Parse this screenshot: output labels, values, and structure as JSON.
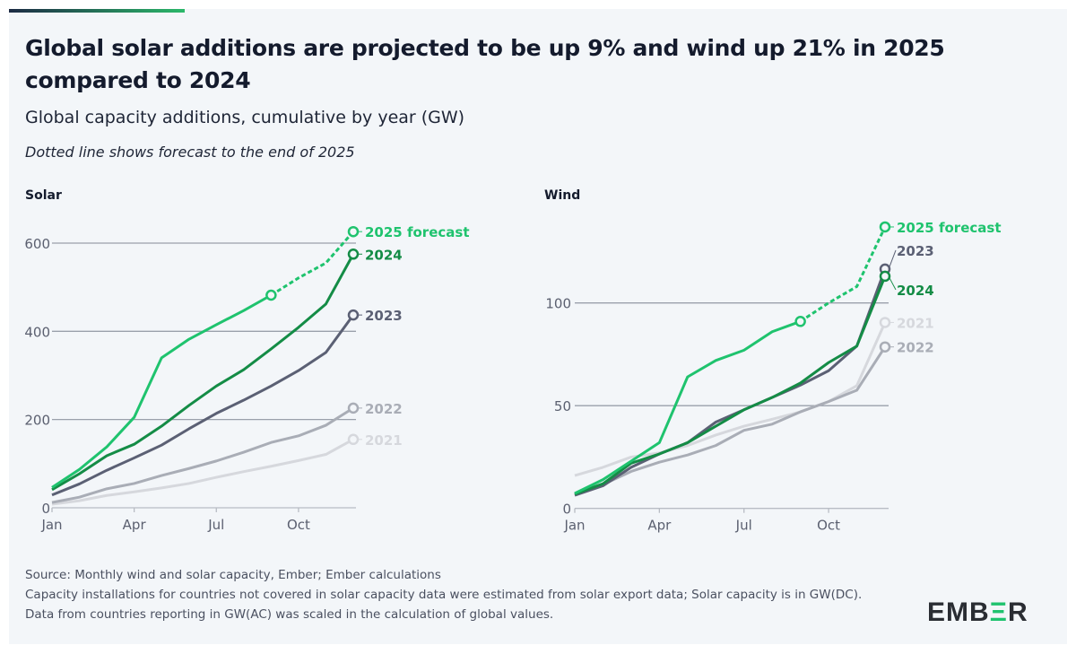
{
  "title": "Global solar additions are projected to be up 9% and wind up 21% in 2025 compared to 2024",
  "subtitle": "Global capacity additions, cumulative by year (GW)",
  "note": "Dotted line shows forecast to the end of 2025",
  "footer": {
    "source": "Source: Monthly wind and solar capacity, Ember; Ember calculations",
    "details": "Capacity installations for countries not covered in solar capacity data were estimated from solar export data; Solar capacity is in GW(DC). Data from countries reporting in GW(AC) was scaled in the calculation of global values."
  },
  "logo": {
    "text": "EMBER",
    "accent": "#1fc36e"
  },
  "colors": {
    "2025 forecast": "#1fc36e",
    "2024": "#148c46",
    "2023": "#5b6074",
    "2022": "#a9adb6",
    "2021": "#d6d8dd",
    "grid": "#9aa0ab"
  },
  "chart_data": [
    {
      "type": "line",
      "title": "Solar",
      "x": [
        "Jan",
        "Feb",
        "Mar",
        "Apr",
        "May",
        "Jun",
        "Jul",
        "Aug",
        "Sep",
        "Oct",
        "Nov",
        "Dec"
      ],
      "xticks": [
        "Jan",
        "Apr",
        "Jul",
        "Oct"
      ],
      "yticks": [
        0,
        200,
        400,
        600
      ],
      "ylim": [
        0,
        640
      ],
      "grid": true,
      "series": [
        {
          "name": "2021",
          "values": [
            8,
            16,
            28,
            36,
            45,
            55,
            69,
            82,
            94,
            107,
            121,
            155
          ]
        },
        {
          "name": "2022",
          "values": [
            12,
            24,
            43,
            55,
            73,
            89,
            106,
            126,
            148,
            163,
            187,
            226
          ]
        },
        {
          "name": "2023",
          "values": [
            29,
            54,
            85,
            113,
            142,
            179,
            214,
            244,
            276,
            311,
            352,
            437
          ]
        },
        {
          "name": "2024",
          "values": [
            41,
            77,
            118,
            144,
            185,
            232,
            276,
            313,
            360,
            409,
            462,
            575
          ]
        },
        {
          "name": "2025 forecast",
          "values": [
            46,
            87,
            138,
            205,
            340,
            382,
            415,
            447,
            482,
            521,
            555,
            626
          ],
          "forecast_from": "Sep"
        }
      ]
    },
    {
      "type": "line",
      "title": "Wind",
      "x": [
        "Jan",
        "Feb",
        "Mar",
        "Apr",
        "May",
        "Jun",
        "Jul",
        "Aug",
        "Sep",
        "Oct",
        "Nov",
        "Dec"
      ],
      "xticks": [
        "Jan",
        "Apr",
        "Jul",
        "Oct"
      ],
      "yticks": [
        0,
        50,
        100
      ],
      "ylim": [
        0,
        140
      ],
      "grid": true,
      "series": [
        {
          "name": "2021",
          "values": [
            16,
            20,
            25,
            27,
            30.6,
            35.7,
            40,
            43.4,
            47,
            52,
            59.7,
            90.5
          ]
        },
        {
          "name": "2022",
          "values": [
            6.5,
            11.6,
            18,
            22.5,
            26,
            30.6,
            38,
            41,
            47,
            52,
            57.5,
            78.6
          ]
        },
        {
          "name": "2023",
          "values": [
            6.4,
            11,
            20,
            26.5,
            32,
            42,
            48,
            54,
            60,
            67,
            79,
            116.5
          ]
        },
        {
          "name": "2024",
          "values": [
            7,
            12,
            22,
            26.5,
            32,
            40,
            48,
            54,
            61,
            71,
            79,
            113
          ]
        },
        {
          "name": "2025 forecast",
          "values": [
            7.3,
            14,
            23,
            32,
            64,
            72,
            77,
            86,
            91,
            100,
            108,
            137
          ],
          "forecast_from": "Sep"
        }
      ]
    }
  ]
}
